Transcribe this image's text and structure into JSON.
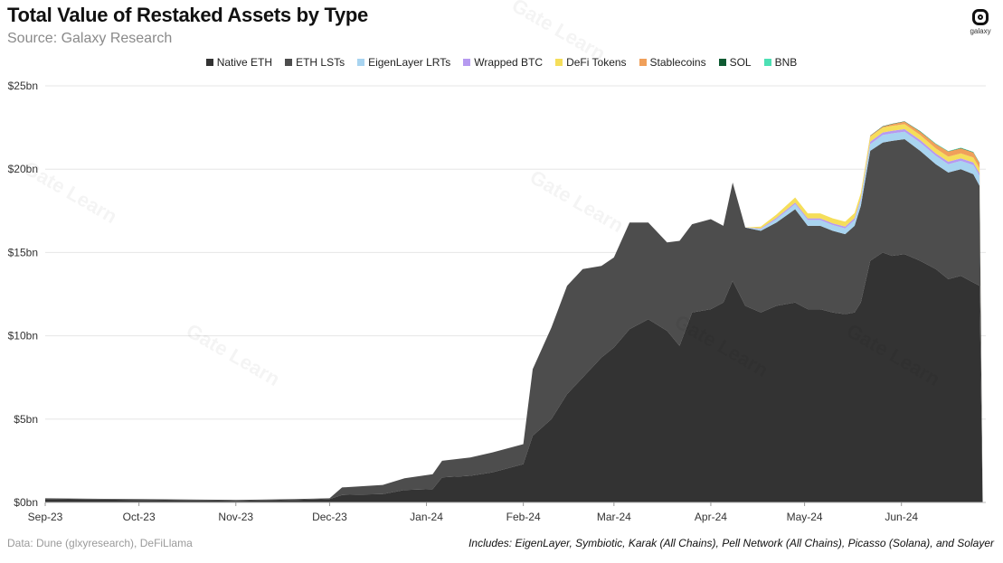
{
  "header": {
    "title": "Total Value of Restaked Assets by Type",
    "subtitle": "Source: Galaxy Research",
    "logo_text": "galaxy"
  },
  "footer": {
    "left": "Data: Dune (glxyresearch), DeFiLlama",
    "right": "Includes: EigenLayer, Symbiotic, Karak (All Chains), Pell Network (All Chains), Picasso (Solana), and Solayer"
  },
  "watermark": "Gate Learn",
  "chart_data": {
    "type": "area",
    "stacked": true,
    "title": "Total Value of Restaked Assets by Type",
    "y_unit": "USD billions",
    "ylim": [
      0,
      25
    ],
    "y_ticks": [
      {
        "value": 0,
        "label": "$0bn"
      },
      {
        "value": 5,
        "label": "$5bn"
      },
      {
        "value": 10,
        "label": "$10bn"
      },
      {
        "value": 15,
        "label": "$15bn"
      },
      {
        "value": 20,
        "label": "$20bn"
      },
      {
        "value": 25,
        "label": "$25bn"
      }
    ],
    "x_ticks": [
      {
        "date": "2023-09-01",
        "label": "Sep-23"
      },
      {
        "date": "2023-10-01",
        "label": "Oct-23"
      },
      {
        "date": "2023-11-01",
        "label": "Nov-23"
      },
      {
        "date": "2023-12-01",
        "label": "Dec-23"
      },
      {
        "date": "2024-01-01",
        "label": "Jan-24"
      },
      {
        "date": "2024-02-01",
        "label": "Feb-24"
      },
      {
        "date": "2024-03-01",
        "label": "Mar-24"
      },
      {
        "date": "2024-04-01",
        "label": "Apr-24"
      },
      {
        "date": "2024-05-01",
        "label": "May-24"
      },
      {
        "date": "2024-06-01",
        "label": "Jun-24"
      }
    ],
    "xlim": [
      "2023-09-01",
      "2024-06-28"
    ],
    "grid": true,
    "legend_position": "top-center",
    "x": [
      "2023-09-01",
      "2023-10-01",
      "2023-11-01",
      "2023-11-20",
      "2023-12-01",
      "2023-12-05",
      "2023-12-18",
      "2023-12-25",
      "2024-01-03",
      "2024-01-06",
      "2024-01-15",
      "2024-01-22",
      "2024-02-01",
      "2024-02-04",
      "2024-02-10",
      "2024-02-15",
      "2024-02-20",
      "2024-02-26",
      "2024-03-01",
      "2024-03-06",
      "2024-03-12",
      "2024-03-18",
      "2024-03-22",
      "2024-03-26",
      "2024-04-01",
      "2024-04-05",
      "2024-04-08",
      "2024-04-12",
      "2024-04-17",
      "2024-04-22",
      "2024-04-28",
      "2024-05-02",
      "2024-05-06",
      "2024-05-10",
      "2024-05-14",
      "2024-05-17",
      "2024-05-19",
      "2024-05-22",
      "2024-05-26",
      "2024-05-29",
      "2024-06-02",
      "2024-06-07",
      "2024-06-12",
      "2024-06-16",
      "2024-06-20",
      "2024-06-24",
      "2024-06-26",
      "2024-06-27"
    ],
    "series": [
      {
        "name": "Native ETH",
        "color": "#333333",
        "values": [
          0.2,
          0.15,
          0.1,
          0.15,
          0.2,
          0.45,
          0.5,
          0.75,
          0.8,
          1.5,
          1.6,
          1.8,
          2.3,
          4.0,
          5.0,
          6.5,
          7.5,
          8.7,
          9.3,
          10.4,
          11.0,
          10.3,
          9.4,
          11.4,
          11.6,
          12.0,
          13.3,
          11.8,
          11.4,
          11.8,
          12.0,
          11.6,
          11.6,
          11.4,
          11.3,
          11.4,
          12.0,
          14.5,
          15.0,
          14.8,
          14.9,
          14.5,
          14.0,
          13.4,
          13.6,
          13.2,
          13.0,
          0.1
        ]
      },
      {
        "name": "ETH LSTs",
        "color": "#4d4d4d",
        "values": [
          0.05,
          0.05,
          0.05,
          0.05,
          0.05,
          0.45,
          0.55,
          0.7,
          0.9,
          1.0,
          1.1,
          1.2,
          1.2,
          4.0,
          5.5,
          6.5,
          6.5,
          5.5,
          5.4,
          6.4,
          5.8,
          5.3,
          6.3,
          5.3,
          5.4,
          4.6,
          5.9,
          4.7,
          4.9,
          5.0,
          5.6,
          5.0,
          5.0,
          4.9,
          4.8,
          5.2,
          5.8,
          6.6,
          6.6,
          6.9,
          6.9,
          6.6,
          6.3,
          6.4,
          6.4,
          6.5,
          6.0,
          0.0
        ]
      },
      {
        "name": "EigenLayer LRTs",
        "color": "#a8d4f0",
        "values": [
          0,
          0,
          0,
          0,
          0,
          0,
          0,
          0,
          0,
          0,
          0,
          0,
          0,
          0,
          0,
          0,
          0,
          0,
          0,
          0,
          0,
          0,
          0,
          0,
          0,
          0,
          0,
          0,
          0.1,
          0.2,
          0.3,
          0.35,
          0.35,
          0.35,
          0.35,
          0.35,
          0.35,
          0.4,
          0.45,
          0.45,
          0.45,
          0.5,
          0.5,
          0.5,
          0.5,
          0.55,
          0.6,
          0.0
        ]
      },
      {
        "name": "Wrapped BTC",
        "color": "#b69af0",
        "values": [
          0,
          0,
          0,
          0,
          0,
          0,
          0,
          0,
          0,
          0,
          0,
          0,
          0,
          0,
          0,
          0,
          0,
          0,
          0,
          0,
          0,
          0,
          0,
          0,
          0,
          0,
          0,
          0,
          0.05,
          0.08,
          0.1,
          0.1,
          0.1,
          0.1,
          0.1,
          0.12,
          0.12,
          0.15,
          0.15,
          0.15,
          0.15,
          0.15,
          0.15,
          0.15,
          0.15,
          0.15,
          0.15,
          0.0
        ]
      },
      {
        "name": "DeFi Tokens",
        "color": "#f5de5a",
        "values": [
          0,
          0,
          0,
          0,
          0,
          0,
          0,
          0,
          0,
          0,
          0,
          0,
          0,
          0,
          0,
          0,
          0,
          0,
          0,
          0,
          0,
          0,
          0,
          0,
          0,
          0,
          0,
          0,
          0.1,
          0.2,
          0.3,
          0.3,
          0.3,
          0.3,
          0.3,
          0.3,
          0.3,
          0.3,
          0.3,
          0.3,
          0.3,
          0.3,
          0.3,
          0.3,
          0.3,
          0.3,
          0.3,
          0.0
        ]
      },
      {
        "name": "Stablecoins",
        "color": "#f0a05a",
        "values": [
          0,
          0,
          0,
          0,
          0,
          0,
          0,
          0,
          0,
          0,
          0,
          0,
          0,
          0,
          0,
          0,
          0,
          0,
          0,
          0,
          0,
          0,
          0,
          0,
          0,
          0,
          0,
          0,
          0,
          0,
          0,
          0,
          0,
          0,
          0,
          0,
          0,
          0.05,
          0.05,
          0.1,
          0.15,
          0.2,
          0.25,
          0.3,
          0.3,
          0.3,
          0.3,
          0.0
        ]
      },
      {
        "name": "SOL",
        "color": "#0f5a32",
        "values": [
          0,
          0,
          0,
          0,
          0,
          0,
          0,
          0,
          0,
          0,
          0,
          0,
          0,
          0,
          0,
          0,
          0,
          0,
          0,
          0,
          0,
          0,
          0,
          0,
          0,
          0,
          0,
          0,
          0,
          0,
          0,
          0,
          0,
          0,
          0,
          0,
          0,
          0.02,
          0.02,
          0.02,
          0.02,
          0.02,
          0.02,
          0.02,
          0.02,
          0.02,
          0.02,
          0.0
        ]
      },
      {
        "name": "BNB",
        "color": "#4de0b4",
        "values": [
          0,
          0,
          0,
          0,
          0,
          0,
          0,
          0,
          0,
          0,
          0,
          0,
          0,
          0,
          0,
          0,
          0,
          0,
          0,
          0,
          0,
          0,
          0,
          0,
          0,
          0,
          0,
          0,
          0,
          0,
          0,
          0,
          0,
          0,
          0,
          0,
          0,
          0,
          0,
          0,
          0,
          0.02,
          0.02,
          0.02,
          0.02,
          0.02,
          0.02,
          0.0
        ]
      }
    ]
  }
}
